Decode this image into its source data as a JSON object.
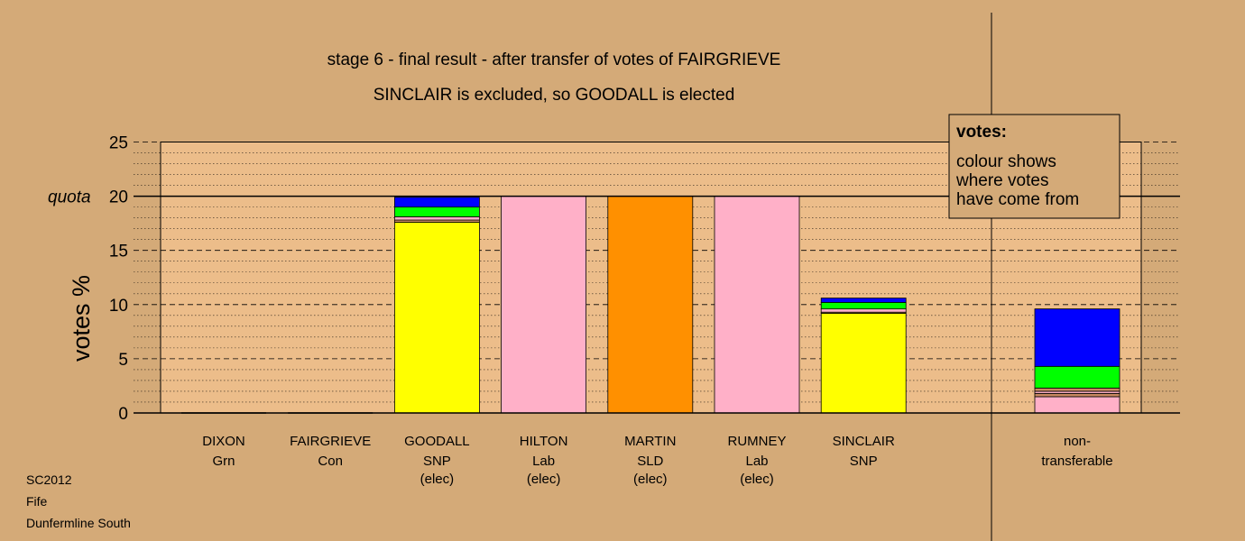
{
  "chart_data": {
    "type": "bar",
    "title": "stage 6 - final result - after transfer of votes of FAIRGRIEVE",
    "subtitle": "SINCLAIR is excluded, so GOODALL is elected",
    "ylabel": "votes %",
    "quota_label": "quota",
    "quota": 20,
    "ylim": [
      0,
      25
    ],
    "yticks": [
      "0",
      "5",
      "10",
      "15",
      "20",
      "25"
    ],
    "legend": {
      "title": "votes:",
      "lines": [
        "colour shows",
        "where votes",
        "have come from"
      ]
    },
    "series_colors": {
      "SNP": "#ffff00",
      "Lab": "#ffb0c8",
      "SLD": "#ff9000",
      "Con": "#0000ff",
      "Grn": "#00ff00",
      "Other": "#c88860"
    },
    "bars": [
      {
        "name": "DIXON",
        "party": "Grn",
        "note": "",
        "segments": []
      },
      {
        "name": "FAIRGRIEVE",
        "party": "Con",
        "note": "",
        "segments": []
      },
      {
        "name": "GOODALL",
        "party": "SNP",
        "note": "(elec)",
        "segments": [
          {
            "source": "SNP",
            "value": 17.6
          },
          {
            "source": "Other",
            "value": 0.2
          },
          {
            "source": "Lab",
            "value": 0.3
          },
          {
            "source": "Grn",
            "value": 0.9
          },
          {
            "source": "Con",
            "value": 0.9
          }
        ]
      },
      {
        "name": "HILTON",
        "party": "Lab",
        "note": "(elec)",
        "segments": [
          {
            "source": "Lab",
            "value": 20.0
          }
        ]
      },
      {
        "name": "MARTIN",
        "party": "SLD",
        "note": "(elec)",
        "segments": [
          {
            "source": "SLD",
            "value": 20.0
          }
        ]
      },
      {
        "name": "RUMNEY",
        "party": "Lab",
        "note": "(elec)",
        "segments": [
          {
            "source": "Lab",
            "value": 20.0
          }
        ]
      },
      {
        "name": "SINCLAIR",
        "party": "SNP",
        "note": "",
        "segments": [
          {
            "source": "SNP",
            "value": 9.2
          },
          {
            "source": "Other",
            "value": 0.1
          },
          {
            "source": "Lab",
            "value": 0.3
          },
          {
            "source": "Grn",
            "value": 0.6
          },
          {
            "source": "Con",
            "value": 0.4
          }
        ]
      }
    ],
    "nontransferable": {
      "label_line1": "non-",
      "label_line2": "transferable",
      "segments": [
        {
          "source": "Lab",
          "value": 1.5
        },
        {
          "source": "Other",
          "value": 0.3
        },
        {
          "source": "Lab",
          "value": 0.2
        },
        {
          "source": "Other",
          "value": 0.3
        },
        {
          "source": "Grn",
          "value": 2.0
        },
        {
          "source": "Con",
          "value": 5.3
        }
      ]
    }
  },
  "footer": {
    "line1": "SC2012",
    "line2": "Fife",
    "line3": "Dunfermline South"
  }
}
